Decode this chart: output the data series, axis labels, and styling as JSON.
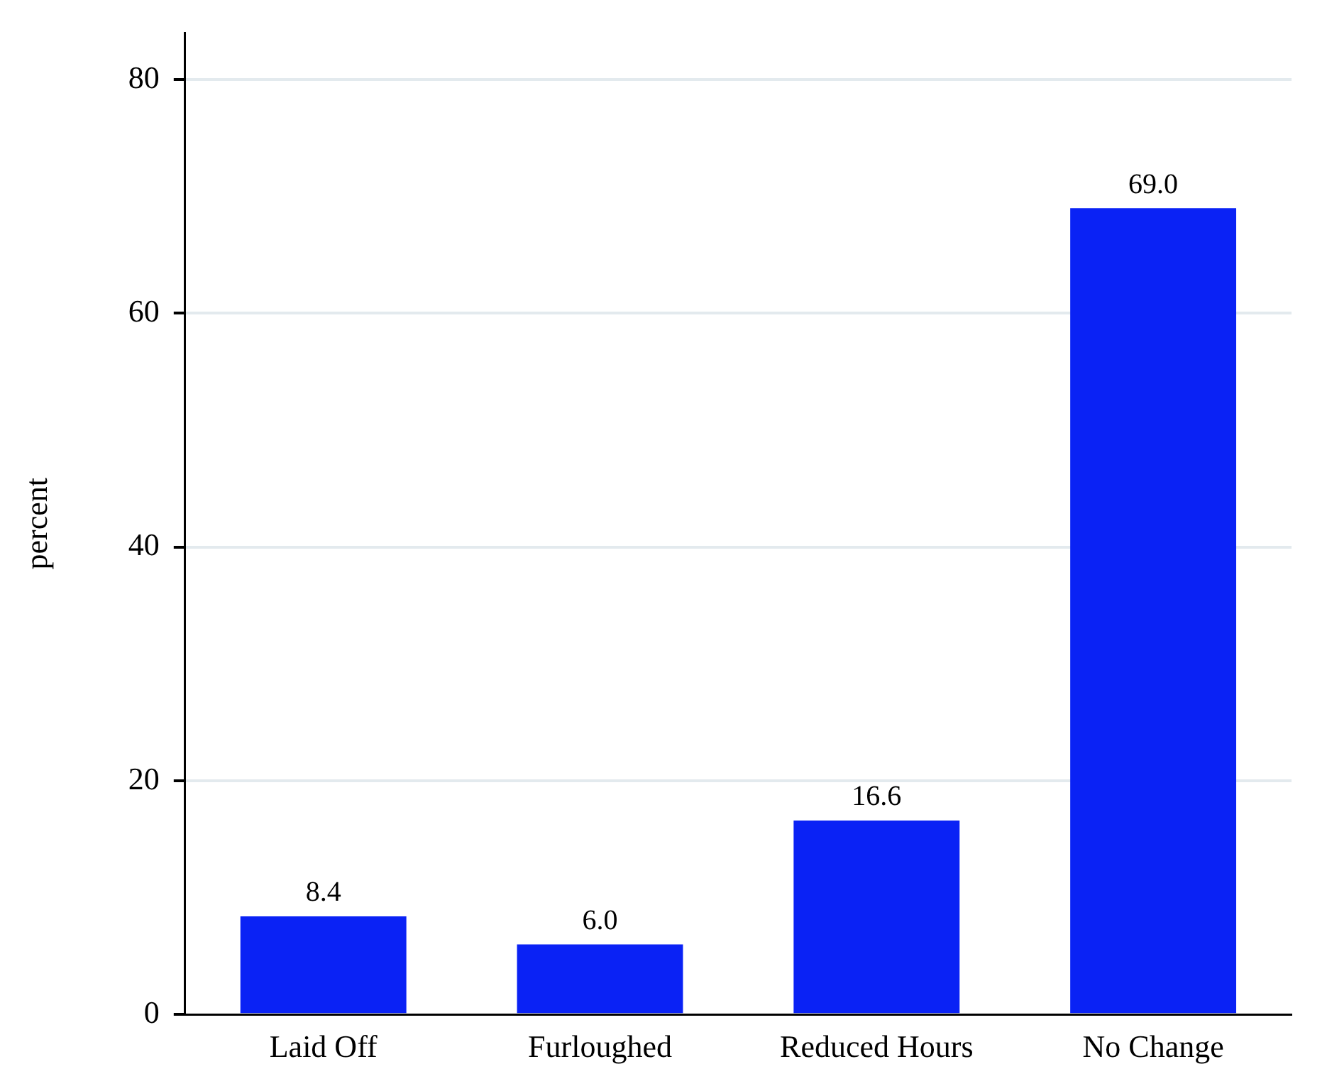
{
  "chart_data": {
    "type": "bar",
    "ylabel": "percent",
    "categories": [
      "Laid Off",
      "Furloughed",
      "Reduced Hours",
      "No Change"
    ],
    "values": [
      8.4,
      6.0,
      16.6,
      69.0
    ],
    "color": "#0a22f5",
    "value_labels": [
      "8.4",
      "6.0",
      "16.6",
      "69.0"
    ],
    "ylim": [
      0,
      84
    ],
    "yticks": [
      0,
      20,
      40,
      60,
      80
    ],
    "grid": "y",
    "legend": false
  }
}
